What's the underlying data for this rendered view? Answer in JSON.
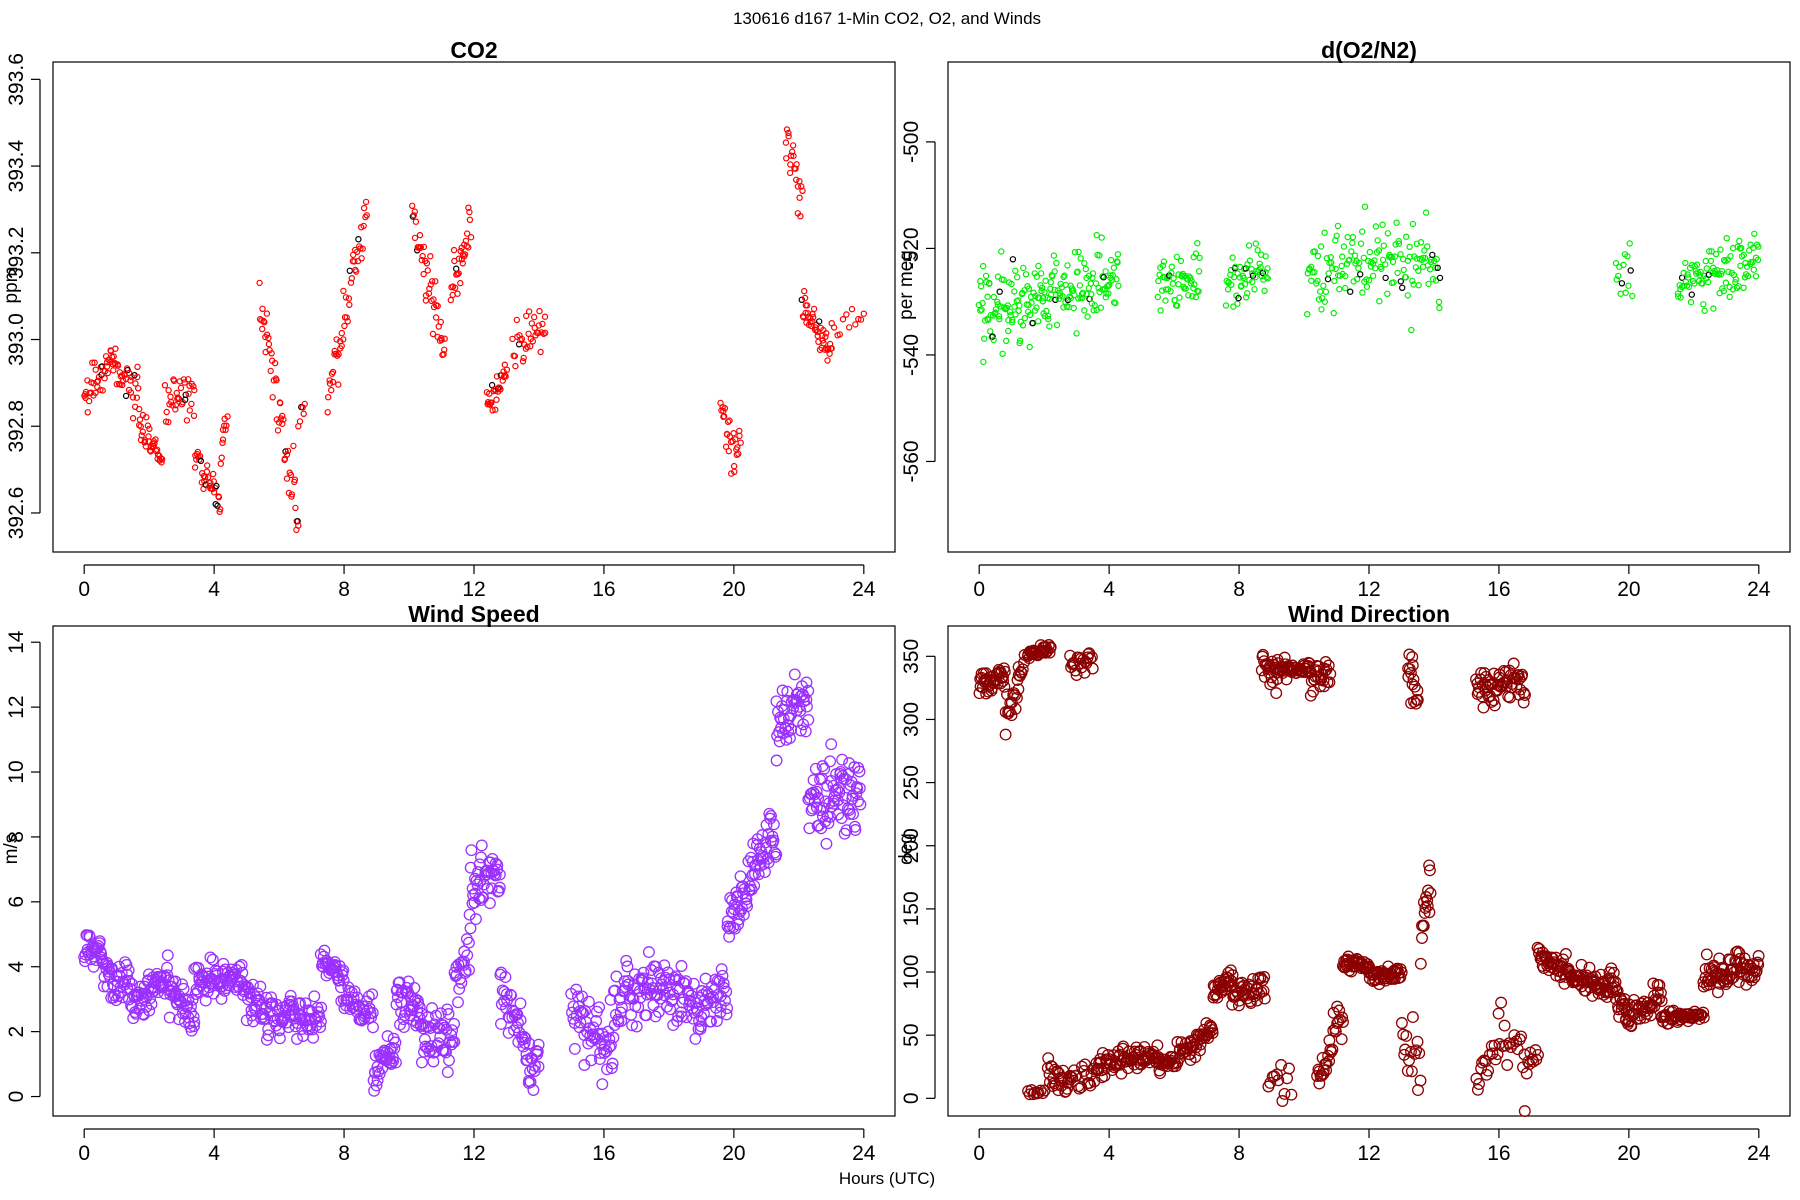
{
  "figure": {
    "suptitle": "130616   d167   1-Min CO2, O2, and Winds",
    "xlabel": "Hours (UTC)"
  },
  "chart_data": [
    {
      "id": "co2",
      "type": "scatter",
      "title": "CO2",
      "ylabel": "ppm",
      "xlim": [
        -0.96,
        24.96
      ],
      "ylim": [
        392.51,
        393.64
      ],
      "xticks": [
        0,
        4,
        8,
        12,
        16,
        20,
        24
      ],
      "yticks": [
        392.6,
        392.8,
        393.0,
        393.2,
        393.4,
        393.6
      ],
      "ytick_labels": [
        "392.6",
        "392.8",
        "393.0",
        "393.2",
        "393.4",
        "393.6"
      ],
      "color": "#ff0000",
      "highlight_color": "#000000",
      "segments": [
        {
          "x": [
            0.0,
            0.9
          ],
          "y": [
            392.87,
            392.96
          ],
          "noise": 0.04,
          "n": 40
        },
        {
          "x": [
            0.9,
            1.7
          ],
          "y": [
            392.94,
            392.86
          ],
          "noise": 0.04,
          "n": 35
        },
        {
          "x": [
            1.7,
            2.4
          ],
          "y": [
            392.8,
            392.72
          ],
          "noise": 0.03,
          "n": 35
        },
        {
          "x": [
            2.5,
            3.4
          ],
          "y": [
            392.85,
            392.88
          ],
          "noise": 0.05,
          "n": 35
        },
        {
          "x": [
            3.4,
            4.2
          ],
          "y": [
            392.73,
            392.62
          ],
          "noise": 0.04,
          "n": 35
        },
        {
          "x": [
            4.2,
            4.4
          ],
          "y": [
            392.7,
            392.86
          ],
          "noise": 0.04,
          "n": 10
        },
        {
          "x": [
            5.4,
            6.6
          ],
          "y": [
            393.1,
            392.58
          ],
          "noise": 0.06,
          "n": 50
        },
        {
          "x": [
            6.6,
            6.8
          ],
          "y": [
            392.8,
            392.85
          ],
          "noise": 0.03,
          "n": 6
        },
        {
          "x": [
            7.5,
            8.7
          ],
          "y": [
            392.85,
            393.3
          ],
          "noise": 0.06,
          "n": 50
        },
        {
          "x": [
            10.1,
            11.1
          ],
          "y": [
            393.28,
            392.98
          ],
          "noise": 0.05,
          "n": 45
        },
        {
          "x": [
            11.3,
            11.9
          ],
          "y": [
            393.12,
            393.24
          ],
          "noise": 0.06,
          "n": 30
        },
        {
          "x": [
            12.4,
            13.0
          ],
          "y": [
            392.85,
            392.92
          ],
          "noise": 0.03,
          "n": 30
        },
        {
          "x": [
            13.2,
            14.2
          ],
          "y": [
            392.98,
            393.04
          ],
          "noise": 0.05,
          "n": 35
        },
        {
          "x": [
            19.6,
            20.2
          ],
          "y": [
            392.8,
            392.75
          ],
          "noise": 0.06,
          "n": 28
        },
        {
          "x": [
            21.6,
            22.1
          ],
          "y": [
            393.5,
            393.3
          ],
          "noise": 0.06,
          "n": 22
        },
        {
          "x": [
            22.1,
            23.0
          ],
          "y": [
            393.08,
            392.97
          ],
          "noise": 0.04,
          "n": 45
        },
        {
          "x": [
            23.0,
            24.0
          ],
          "y": [
            393.03,
            393.05
          ],
          "noise": 0.03,
          "n": 12
        }
      ]
    },
    {
      "id": "o2",
      "type": "scatter",
      "title": "d(O2/N2)",
      "ylabel": "per meg",
      "xlim": [
        -0.96,
        24.96
      ],
      "ylim": [
        -577,
        -485
      ],
      "xticks": [
        0,
        4,
        8,
        12,
        16,
        20,
        24
      ],
      "yticks": [
        -560,
        -540,
        -520,
        -500
      ],
      "ytick_labels": [
        "-560",
        "-540",
        "-520",
        "-500"
      ],
      "color": "#00ee00",
      "highlight_color": "#000000",
      "segments": [
        {
          "x": [
            0.0,
            2.2
          ],
          "y": [
            -530,
            -530
          ],
          "noise": 7,
          "n": 110
        },
        {
          "x": [
            2.2,
            4.3
          ],
          "y": [
            -528,
            -526
          ],
          "noise": 7,
          "n": 95
        },
        {
          "x": [
            5.5,
            6.8
          ],
          "y": [
            -527,
            -525
          ],
          "noise": 5,
          "n": 55
        },
        {
          "x": [
            7.6,
            8.9
          ],
          "y": [
            -525,
            -524
          ],
          "noise": 5,
          "n": 55
        },
        {
          "x": [
            10.1,
            14.2
          ],
          "y": [
            -523,
            -523
          ],
          "noise": 7,
          "n": 150
        },
        {
          "x": [
            19.6,
            20.1
          ],
          "y": [
            -524,
            -524
          ],
          "noise": 5,
          "n": 14
        },
        {
          "x": [
            21.5,
            24.0
          ],
          "y": [
            -527,
            -521
          ],
          "noise": 5,
          "n": 100
        }
      ]
    },
    {
      "id": "wind_speed",
      "type": "scatter",
      "title": "Wind Speed",
      "ylabel": "m/s",
      "xlim": [
        -0.96,
        24.96
      ],
      "ylim": [
        -0.6,
        14.5
      ],
      "xticks": [
        0,
        4,
        8,
        12,
        16,
        20,
        24
      ],
      "yticks": [
        0,
        2,
        4,
        6,
        8,
        10,
        12,
        14
      ],
      "ytick_labels": [
        "0",
        "2",
        "4",
        "6",
        "8",
        "10",
        "12",
        "14"
      ],
      "color": "#9b30ff",
      "segments": [
        {
          "x": [
            0.0,
            0.6
          ],
          "y": [
            4.5,
            4.6
          ],
          "noise": 0.6,
          "n": 30
        },
        {
          "x": [
            0.6,
            1.8
          ],
          "y": [
            3.9,
            2.9
          ],
          "noise": 0.6,
          "n": 55
        },
        {
          "x": [
            1.8,
            2.6
          ],
          "y": [
            3.0,
            3.8
          ],
          "noise": 0.6,
          "n": 40
        },
        {
          "x": [
            2.6,
            3.4
          ],
          "y": [
            3.4,
            2.4
          ],
          "noise": 0.6,
          "n": 40
        },
        {
          "x": [
            3.4,
            4.9
          ],
          "y": [
            3.5,
            3.7
          ],
          "noise": 0.5,
          "n": 70
        },
        {
          "x": [
            4.9,
            6.1
          ],
          "y": [
            3.0,
            2.3
          ],
          "noise": 0.6,
          "n": 55
        },
        {
          "x": [
            6.1,
            7.3
          ],
          "y": [
            2.6,
            2.4
          ],
          "noise": 0.5,
          "n": 55
        },
        {
          "x": [
            7.3,
            8.0
          ],
          "y": [
            4.2,
            3.6
          ],
          "noise": 0.4,
          "n": 35
        },
        {
          "x": [
            8.0,
            8.9
          ],
          "y": [
            3.2,
            2.5
          ],
          "noise": 0.5,
          "n": 40
        },
        {
          "x": [
            8.9,
            9.6
          ],
          "y": [
            0.8,
            1.5
          ],
          "noise": 0.5,
          "n": 35
        },
        {
          "x": [
            9.6,
            10.4
          ],
          "y": [
            3.0,
            2.5
          ],
          "noise": 0.9,
          "n": 40
        },
        {
          "x": [
            10.4,
            11.4
          ],
          "y": [
            2.0,
            1.8
          ],
          "noise": 0.7,
          "n": 45
        },
        {
          "x": [
            11.4,
            11.9
          ],
          "y": [
            3.5,
            4.5
          ],
          "noise": 0.7,
          "n": 22
        },
        {
          "x": [
            11.9,
            12.8
          ],
          "y": [
            6.5,
            6.8
          ],
          "noise": 1.0,
          "n": 45
        },
        {
          "x": [
            12.8,
            13.7
          ],
          "y": [
            3.5,
            1.2
          ],
          "noise": 0.8,
          "n": 40
        },
        {
          "x": [
            13.7,
            14.0
          ],
          "y": [
            0.8,
            1.2
          ],
          "noise": 0.5,
          "n": 14
        },
        {
          "x": [
            15.0,
            16.3
          ],
          "y": [
            2.5,
            1.5
          ],
          "noise": 1.0,
          "n": 55
        },
        {
          "x": [
            16.3,
            17.6
          ],
          "y": [
            3.0,
            3.5
          ],
          "noise": 0.9,
          "n": 55
        },
        {
          "x": [
            17.6,
            19.0
          ],
          "y": [
            3.6,
            2.5
          ],
          "noise": 0.9,
          "n": 60
        },
        {
          "x": [
            19.0,
            19.8
          ],
          "y": [
            2.8,
            3.2
          ],
          "noise": 0.8,
          "n": 35
        },
        {
          "x": [
            19.8,
            20.6
          ],
          "y": [
            5.0,
            6.8
          ],
          "noise": 0.8,
          "n": 40
        },
        {
          "x": [
            20.6,
            21.3
          ],
          "y": [
            7.0,
            8.0
          ],
          "noise": 0.8,
          "n": 35
        },
        {
          "x": [
            21.3,
            22.3
          ],
          "y": [
            11.5,
            12.2
          ],
          "noise": 0.9,
          "n": 50
        },
        {
          "x": [
            22.3,
            23.9
          ],
          "y": [
            9.0,
            9.5
          ],
          "noise": 1.3,
          "n": 80
        }
      ]
    },
    {
      "id": "wind_direction",
      "type": "scatter",
      "title": "Wind Direction",
      "ylabel": "deg",
      "xlim": [
        -0.96,
        24.96
      ],
      "ylim": [
        -14,
        374
      ],
      "xticks": [
        0,
        4,
        8,
        12,
        16,
        20,
        24
      ],
      "yticks": [
        0,
        50,
        100,
        150,
        200,
        250,
        300,
        350
      ],
      "ytick_labels": [
        "0",
        "50",
        "100",
        "150",
        "200",
        "250",
        "300",
        "350"
      ],
      "color": "#8b0000",
      "segments": [
        {
          "x": [
            0.0,
            0.8
          ],
          "y": [
            328,
            332
          ],
          "noise": 8,
          "n": 40
        },
        {
          "x": [
            0.8,
            1.2
          ],
          "y": [
            300,
            325
          ],
          "noise": 15,
          "n": 16
        },
        {
          "x": [
            1.2,
            1.4
          ],
          "y": [
            335,
            342
          ],
          "noise": 8,
          "n": 8
        },
        {
          "x": [
            1.5,
            2.2
          ],
          "y": [
            352,
            355
          ],
          "noise": 4,
          "n": 32
        },
        {
          "x": [
            2.8,
            3.5
          ],
          "y": [
            343,
            345
          ],
          "noise": 8,
          "n": 22
        },
        {
          "x": [
            1.5,
            2.0
          ],
          "y": [
            4,
            5
          ],
          "noise": 3,
          "n": 10
        },
        {
          "x": [
            2.1,
            2.7
          ],
          "y": [
            25,
            10
          ],
          "noise": 10,
          "n": 24
        },
        {
          "x": [
            2.7,
            3.6
          ],
          "y": [
            15,
            20
          ],
          "noise": 10,
          "n": 22
        },
        {
          "x": [
            3.6,
            5.5
          ],
          "y": [
            25,
            35
          ],
          "noise": 8,
          "n": 80
        },
        {
          "x": [
            5.5,
            6.5
          ],
          "y": [
            25,
            40
          ],
          "noise": 8,
          "n": 40
        },
        {
          "x": [
            6.5,
            7.2
          ],
          "y": [
            40,
            55
          ],
          "noise": 8,
          "n": 30
        },
        {
          "x": [
            7.2,
            7.8
          ],
          "y": [
            85,
            95
          ],
          "noise": 8,
          "n": 30
        },
        {
          "x": [
            7.8,
            8.8
          ],
          "y": [
            80,
            90
          ],
          "noise": 10,
          "n": 40
        },
        {
          "x": [
            8.7,
            9.2
          ],
          "y": [
            340,
            335
          ],
          "noise": 10,
          "n": 22
        },
        {
          "x": [
            9.2,
            10.2
          ],
          "y": [
            340,
            340
          ],
          "noise": 5,
          "n": 40
        },
        {
          "x": [
            10.2,
            10.8
          ],
          "y": [
            332,
            340
          ],
          "noise": 10,
          "n": 26
        },
        {
          "x": [
            8.9,
            9.6
          ],
          "y": [
            20,
            8
          ],
          "noise": 12,
          "n": 12
        },
        {
          "x": [
            10.4,
            11.2
          ],
          "y": [
            15,
            70
          ],
          "noise": 15,
          "n": 30
        },
        {
          "x": [
            11.2,
            12.0
          ],
          "y": [
            108,
            105
          ],
          "noise": 5,
          "n": 40
        },
        {
          "x": [
            12.0,
            13.0
          ],
          "y": [
            95,
            100
          ],
          "noise": 5,
          "n": 45
        },
        {
          "x": [
            13.0,
            13.6
          ],
          "y": [
            50,
            20
          ],
          "noise": 25,
          "n": 16
        },
        {
          "x": [
            13.2,
            13.5
          ],
          "y": [
            340,
            320
          ],
          "noise": 15,
          "n": 16
        },
        {
          "x": [
            13.6,
            13.9
          ],
          "y": [
            130,
            160
          ],
          "noise": 25,
          "n": 16
        },
        {
          "x": [
            15.3,
            16.0
          ],
          "y": [
            330,
            325
          ],
          "noise": 12,
          "n": 30
        },
        {
          "x": [
            16.0,
            16.8
          ],
          "y": [
            330,
            325
          ],
          "noise": 10,
          "n": 32
        },
        {
          "x": [
            15.3,
            16.0
          ],
          "y": [
            10,
            40
          ],
          "noise": 15,
          "n": 16
        },
        {
          "x": [
            16.0,
            16.8
          ],
          "y": [
            60,
            20
          ],
          "noise": 25,
          "n": 16
        },
        {
          "x": [
            16.8,
            17.2
          ],
          "y": [
            20,
            30
          ],
          "noise": 10,
          "n": 10
        },
        {
          "x": [
            17.2,
            18.2
          ],
          "y": [
            110,
            100
          ],
          "noise": 10,
          "n": 45
        },
        {
          "x": [
            18.2,
            19.4
          ],
          "y": [
            95,
            90
          ],
          "noise": 10,
          "n": 55
        },
        {
          "x": [
            19.4,
            20.0
          ],
          "y": [
            95,
            60
          ],
          "noise": 12,
          "n": 30
        },
        {
          "x": [
            20.0,
            21.0
          ],
          "y": [
            65,
            80
          ],
          "noise": 10,
          "n": 40
        },
        {
          "x": [
            21.0,
            22.3
          ],
          "y": [
            65,
            65
          ],
          "noise": 4,
          "n": 50
        },
        {
          "x": [
            22.3,
            24.0
          ],
          "y": [
            95,
            105
          ],
          "noise": 12,
          "n": 80
        }
      ]
    }
  ]
}
